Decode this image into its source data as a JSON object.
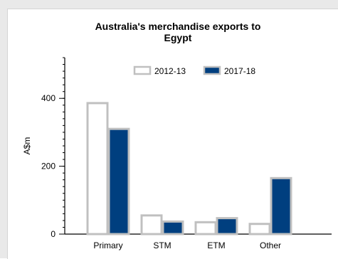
{
  "chart_data": {
    "type": "bar",
    "title_lines": [
      "Australia's merchandise exports to",
      "Egypt"
    ],
    "xlabel": "",
    "ylabel": "A$m",
    "categories": [
      "Primary",
      "STM",
      "ETM",
      "Other"
    ],
    "ylim": [
      0,
      520
    ],
    "yticks": [
      0,
      200,
      400
    ],
    "series": [
      {
        "name": "2012-13",
        "values": [
          386,
          55,
          35,
          30
        ],
        "color": "#ffffff",
        "border": "#c0c0c0"
      },
      {
        "name": "2017-18",
        "values": [
          310,
          37,
          47,
          165
        ],
        "color": "#003f7f",
        "border": "#c0c0c0"
      }
    ],
    "legend_position": "top",
    "grid": false
  }
}
